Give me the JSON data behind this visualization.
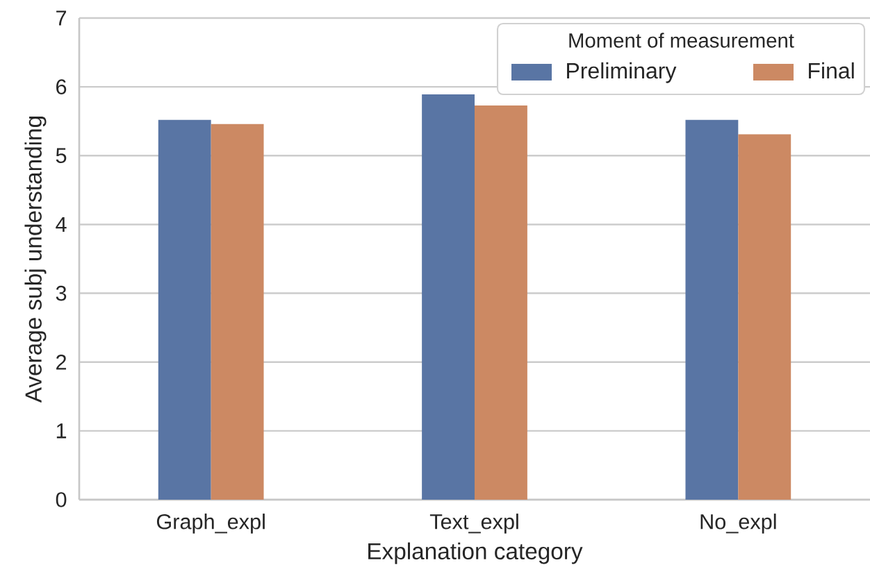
{
  "chart_data": {
    "type": "bar",
    "xlabel": "Explanation category",
    "ylabel": "Average subj understanding",
    "legend_title": "Moment of measurement",
    "categories": [
      "Graph_expl",
      "Text_expl",
      "No_expl"
    ],
    "series": [
      {
        "name": "Preliminary",
        "color": "#5975a4",
        "values": [
          5.52,
          5.89,
          5.52
        ]
      },
      {
        "name": "Final",
        "color": "#cc8963",
        "values": [
          5.46,
          5.73,
          5.31
        ]
      }
    ],
    "ylim": [
      0,
      7
    ],
    "yticks": [
      0,
      1,
      2,
      3,
      4,
      5,
      6,
      7
    ],
    "grid": "y",
    "legend": "top right"
  }
}
